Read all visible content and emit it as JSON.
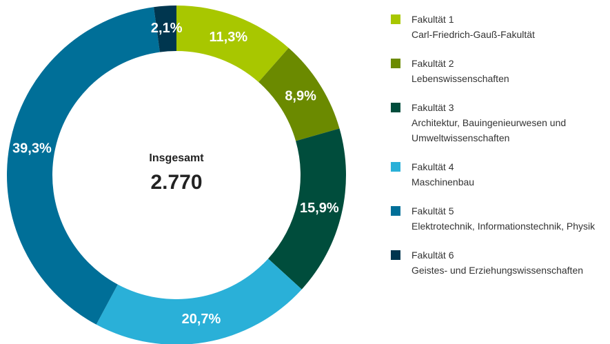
{
  "chart_data": {
    "type": "donut",
    "categories": [
      "Fakultät 1",
      "Fakultät 2",
      "Fakultät 3",
      "Fakultät 4",
      "Fakultät 5",
      "Fakultät 6"
    ],
    "descriptions": [
      "Carl-Friedrich-Gauß-Fakultät",
      "Lebenswissenschaften",
      "Architektur, Bauingenieurwesen und Umweltwissenschaften",
      "Maschinenbau",
      "Elektrotechnik, Informationstechnik, Physik",
      "Geistes- und Erziehungswissenschaften"
    ],
    "values": [
      11.3,
      8.9,
      15.9,
      20.7,
      39.3,
      2.1
    ],
    "value_labels": [
      "11,3%",
      "8,9%",
      "15,9%",
      "20,7%",
      "39,3%",
      "2,1%"
    ],
    "colors": [
      "#a8c700",
      "#6b8a00",
      "#004d3c",
      "#2ab0d8",
      "#006f98",
      "#00364f"
    ],
    "center_label": "Insgesamt",
    "center_value": "2.770"
  }
}
